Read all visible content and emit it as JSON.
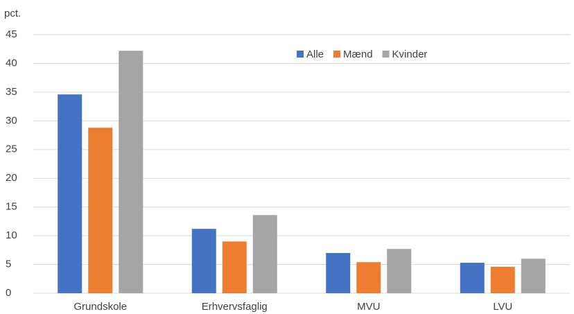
{
  "chart_data": {
    "type": "bar",
    "y_label": "pct.",
    "categories": [
      "Grundskole",
      "Erhvervsfaglig",
      "MVU",
      "LVU"
    ],
    "series": [
      {
        "name": "Alle",
        "color": "#4472c4",
        "values": [
          34.6,
          11.2,
          7.0,
          5.3
        ]
      },
      {
        "name": "Mænd",
        "color": "#ed7d31",
        "values": [
          28.8,
          9.0,
          5.4,
          4.6
        ]
      },
      {
        "name": "Kvinder",
        "color": "#a5a5a5",
        "values": [
          42.2,
          13.6,
          7.7,
          6.0
        ]
      }
    ],
    "ylim": [
      0,
      45
    ],
    "yticks": [
      0,
      5,
      10,
      15,
      20,
      25,
      30,
      35,
      40,
      45
    ],
    "grid": true,
    "legend": "top"
  }
}
